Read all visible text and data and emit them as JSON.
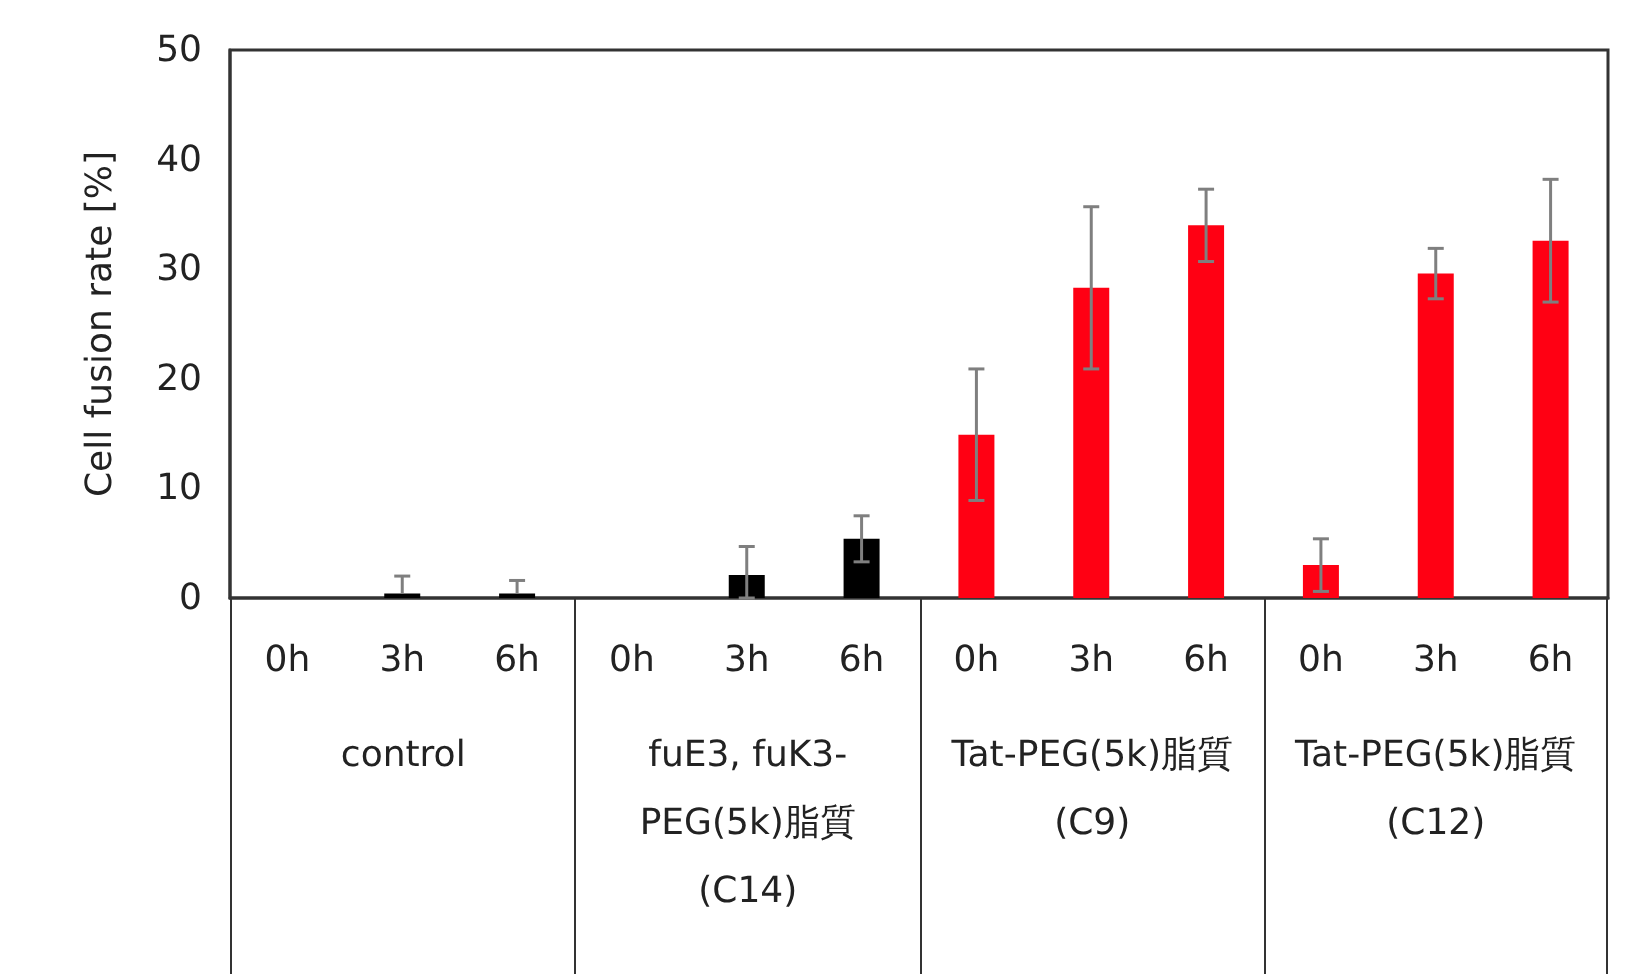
{
  "chart_data": {
    "type": "bar",
    "ylabel": "Cell fusion rate [%]",
    "categories": [
      "0h",
      "3h",
      "6h",
      "0h",
      "3h",
      "6h",
      "0h",
      "3h",
      "6h",
      "0h",
      "3h",
      "6h"
    ],
    "values": [
      0,
      0.4,
      0.4,
      0,
      2.1,
      5.4,
      14.9,
      28.3,
      34.0,
      3.0,
      29.6,
      32.6
    ],
    "errors": [
      null,
      [
        0.4,
        2.0
      ],
      [
        0.4,
        1.6
      ],
      null,
      [
        0,
        4.7
      ],
      2.1,
      6.0,
      7.4,
      3.3,
      2.4,
      2.3,
      5.6
    ],
    "colors": [
      "#000000",
      "#000000",
      "#000000",
      "#000000",
      "#000000",
      "#000000",
      "#ff0013",
      "#ff0013",
      "#ff0013",
      "#ff0013",
      "#ff0013",
      "#ff0013"
    ],
    "ylim": [
      0,
      50
    ],
    "yticks": [
      0,
      10,
      20,
      30,
      40,
      50
    ],
    "grid": false,
    "annotations": [
      "control",
      "fuE3, fuK3-PEG(5k)脂質(C14)",
      "Tat-PEG(5k)脂質(C9)",
      "Tat-PEG(5k)脂質(C12)"
    ]
  }
}
